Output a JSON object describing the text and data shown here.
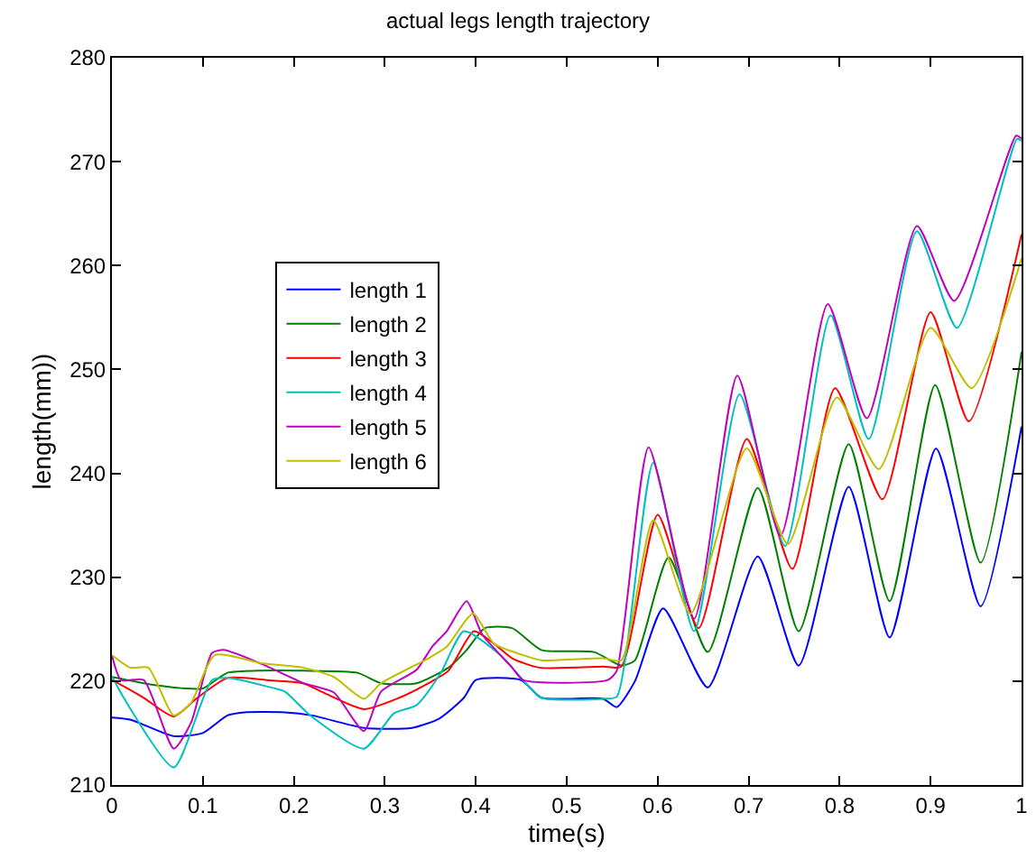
{
  "chart_data": {
    "type": "line",
    "title": "actual legs length trajectory",
    "xlabel": "time(s)",
    "ylabel": "length(mm))",
    "xlim": [
      0,
      1
    ],
    "xticks": [
      0,
      0.1,
      0.2,
      0.3,
      0.4,
      0.5,
      0.6,
      0.7,
      0.8,
      0.9,
      1
    ],
    "ylim": [
      210,
      280
    ],
    "yticks": [
      210,
      220,
      230,
      240,
      250,
      260,
      270,
      280
    ],
    "grid": false,
    "legend": "left",
    "marker": "none",
    "line_style": "solid",
    "series": [
      {
        "name": "length 1",
        "color": "#0000ff",
        "x": [
          0,
          0.02,
          0.068,
          0.1,
          0.127,
          0.146,
          0.19,
          0.22,
          0.277,
          0.33,
          0.36,
          0.387,
          0.4,
          0.45,
          0.472,
          0.54,
          0.555,
          0.575,
          0.606,
          0.655,
          0.71,
          0.755,
          0.81,
          0.855,
          0.906,
          0.955,
          1
        ],
        "values": [
          216.5,
          216.3,
          214.7,
          215,
          216.7,
          217,
          217,
          216.7,
          215.5,
          215.5,
          216.4,
          218.4,
          220.1,
          220.1,
          218.4,
          218.3,
          217.5,
          220,
          227,
          219.4,
          232,
          221.5,
          238.7,
          224.2,
          242.4,
          227.2,
          244.5
        ]
      },
      {
        "name": "length 2",
        "color": "#008000",
        "x": [
          0,
          0.035,
          0.08,
          0.1,
          0.127,
          0.16,
          0.21,
          0.27,
          0.296,
          0.335,
          0.37,
          0.39,
          0.41,
          0.44,
          0.472,
          0.53,
          0.56,
          0.575,
          0.612,
          0.655,
          0.71,
          0.755,
          0.81,
          0.855,
          0.905,
          0.955,
          1
        ],
        "values": [
          220.4,
          219.8,
          219.3,
          219.3,
          220.8,
          221,
          221,
          220.8,
          219.8,
          219.8,
          221.3,
          223,
          225.1,
          225.1,
          223,
          222.8,
          221.5,
          222,
          231.9,
          222.8,
          238.6,
          224.8,
          242.8,
          227.7,
          248.5,
          231.4,
          251.7
        ]
      },
      {
        "name": "length 3",
        "color": "#ff0000",
        "x": [
          0,
          0.013,
          0.035,
          0.068,
          0.094,
          0.127,
          0.17,
          0.21,
          0.23,
          0.277,
          0.316,
          0.348,
          0.37,
          0.398,
          0.42,
          0.44,
          0.47,
          0.54,
          0.56,
          0.6,
          0.645,
          0.698,
          0.748,
          0.795,
          0.847,
          0.9,
          0.942,
          1
        ],
        "values": [
          220.1,
          219.5,
          218.4,
          216.6,
          218.4,
          220.3,
          220.1,
          219.8,
          219,
          217.3,
          218.4,
          219.8,
          221,
          224.8,
          223.6,
          222.2,
          221.3,
          221.4,
          221.4,
          236,
          225.1,
          243.3,
          230.8,
          248.2,
          237.5,
          255.5,
          245,
          263
        ]
      },
      {
        "name": "length 4",
        "color": "#00bfbf",
        "x": [
          0,
          0.013,
          0.068,
          0.11,
          0.13,
          0.17,
          0.19,
          0.218,
          0.277,
          0.31,
          0.335,
          0.361,
          0.387,
          0.427,
          0.452,
          0.472,
          0.54,
          0.555,
          0.595,
          0.64,
          0.69,
          0.74,
          0.79,
          0.832,
          0.885,
          0.929,
          0.995,
          1
        ],
        "values": [
          220.5,
          218.4,
          211.7,
          220.1,
          220.3,
          219.5,
          219,
          216.7,
          213.5,
          216.9,
          217.7,
          220.7,
          224.8,
          222.5,
          220.1,
          218.4,
          218.3,
          218.5,
          241,
          224.8,
          247.6,
          233,
          255.2,
          243.3,
          263.3,
          254,
          272.2,
          272
        ]
      },
      {
        "name": "length 5",
        "color": "#bf00bf",
        "x": [
          0,
          0.01,
          0.035,
          0.068,
          0.087,
          0.11,
          0.123,
          0.166,
          0.211,
          0.244,
          0.277,
          0.296,
          0.335,
          0.352,
          0.368,
          0.39,
          0.407,
          0.44,
          0.452,
          0.545,
          0.555,
          0.59,
          0.64,
          0.6875,
          0.735,
          0.787,
          0.83,
          0.885,
          0.926,
          0.994,
          1
        ],
        "values": [
          222.5,
          220.1,
          220.1,
          213.5,
          216,
          222.7,
          223,
          221.6,
          219.8,
          218.9,
          215.2,
          219,
          221.1,
          223.3,
          224.8,
          227.7,
          224.5,
          221.3,
          220.1,
          220.1,
          221,
          242.5,
          226,
          249.4,
          234,
          256.3,
          245.3,
          263.8,
          256.6,
          272.5,
          272.2
        ]
      },
      {
        "name": "length 6",
        "color": "#bfbf00",
        "x": [
          0,
          0.02,
          0.04,
          0.068,
          0.087,
          0.113,
          0.166,
          0.21,
          0.244,
          0.277,
          0.296,
          0.348,
          0.368,
          0.397,
          0.42,
          0.452,
          0.472,
          0.54,
          0.56,
          0.595,
          0.636,
          0.698,
          0.743,
          0.797,
          0.843,
          0.9,
          0.945,
          1
        ],
        "values": [
          222.5,
          221.3,
          221.3,
          216.7,
          217.9,
          222.5,
          221.7,
          221.3,
          220.4,
          218.3,
          219.8,
          222.2,
          223.3,
          226.5,
          223.6,
          222.5,
          222,
          222.2,
          222,
          235.5,
          226.5,
          242.4,
          233.2,
          247.3,
          240.4,
          254,
          248.2,
          260.7
        ]
      }
    ]
  }
}
